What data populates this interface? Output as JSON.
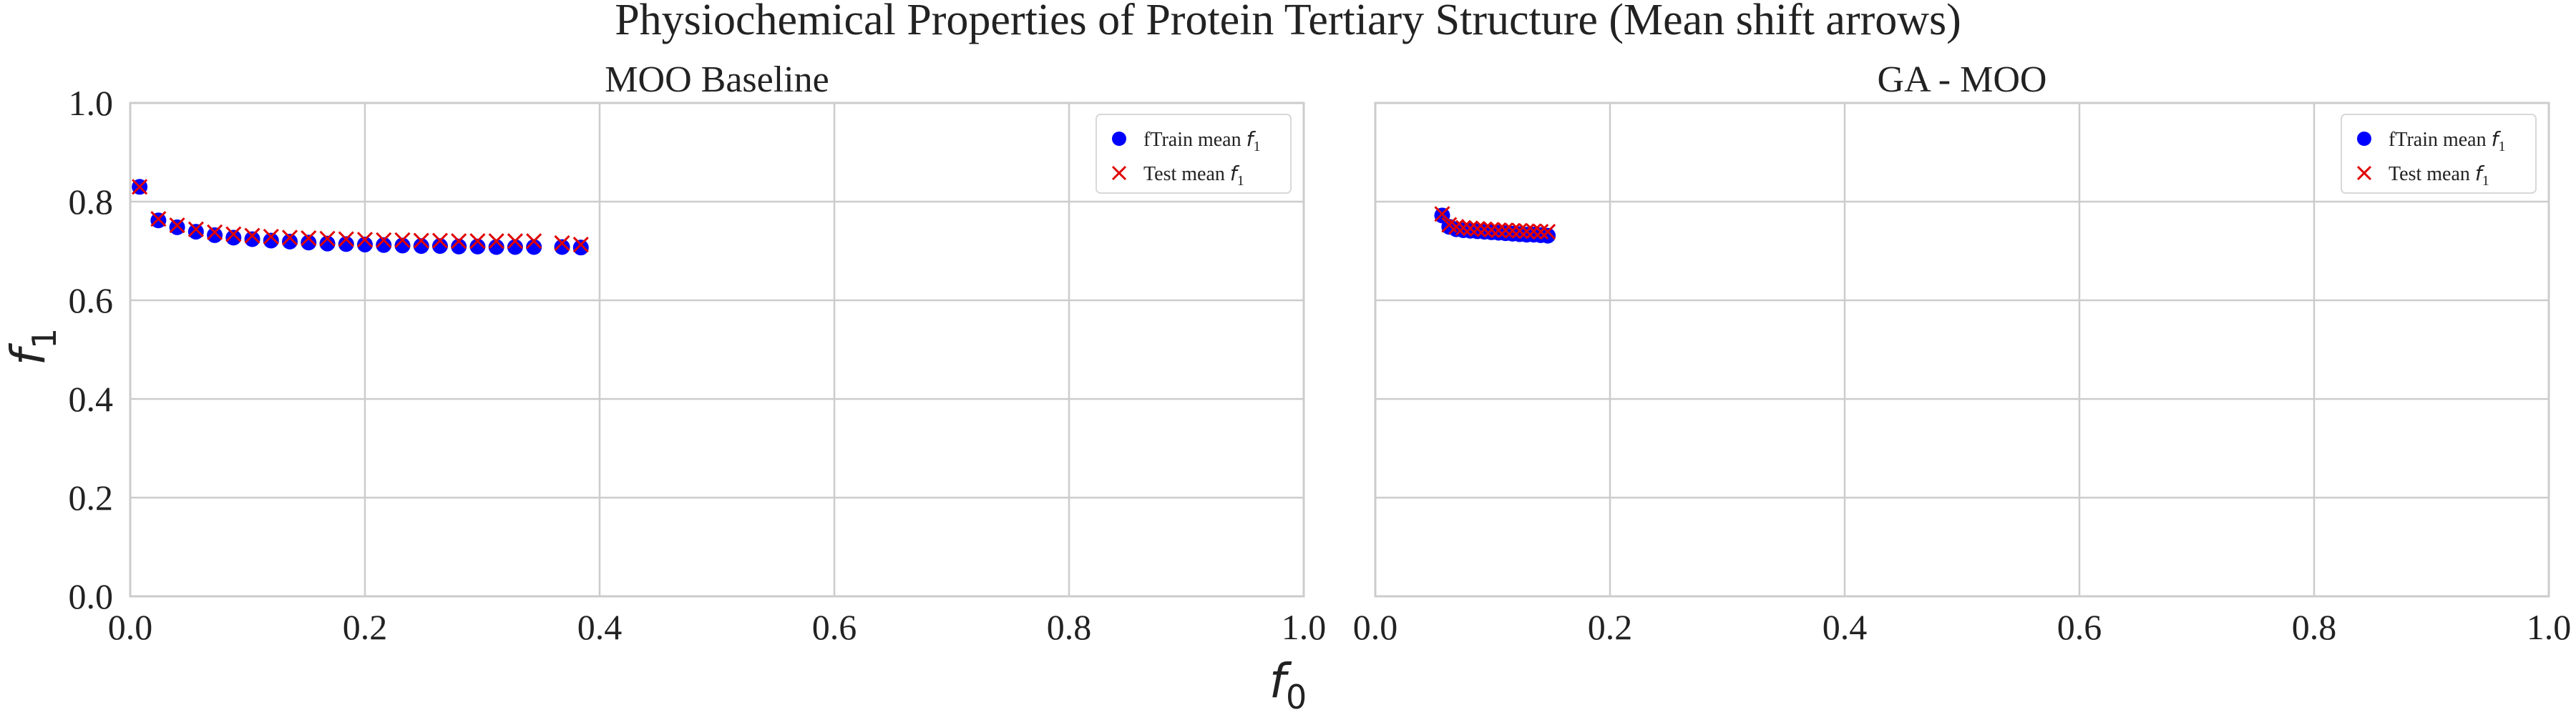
{
  "figure": {
    "suptitle": "Physiochemical Properties of Protein Tertiary Structure (Mean shift arrows)",
    "xlabel": "f",
    "xlabel_sub": "0",
    "ylabel": "f",
    "ylabel_sub": "1"
  },
  "colors": {
    "train": "#0000ff",
    "test": "#e00000",
    "grid": "#cccccc",
    "axes": "#cccccc",
    "text": "#222222"
  },
  "chart_data": [
    {
      "type": "scatter",
      "title": "MOO Baseline",
      "xlim": [
        0,
        1
      ],
      "ylim": [
        0,
        1
      ],
      "xticks": [
        "0.0",
        "0.2",
        "0.4",
        "0.6",
        "0.8",
        "1.0"
      ],
      "yticks": [
        "0.0",
        "0.2",
        "0.4",
        "0.6",
        "0.8",
        "1.0"
      ],
      "grid": true,
      "legend_position": "top-right",
      "legend": [
        {
          "label": "fTrain mean ",
          "sym": "f",
          "sub": "1",
          "marker": "circle"
        },
        {
          "label": "Test mean ",
          "sym": "f",
          "sub": "1",
          "marker": "x"
        }
      ],
      "series": [
        {
          "name": "fTrain mean f1",
          "marker": "circle",
          "x": [
            0.008,
            0.024,
            0.04,
            0.056,
            0.072,
            0.088,
            0.104,
            0.12,
            0.136,
            0.152,
            0.168,
            0.184,
            0.2,
            0.216,
            0.232,
            0.248,
            0.264,
            0.28,
            0.296,
            0.312,
            0.328,
            0.344,
            0.368,
            0.384
          ],
          "y": [
            0.83,
            0.762,
            0.748,
            0.739,
            0.732,
            0.727,
            0.724,
            0.721,
            0.719,
            0.717,
            0.715,
            0.714,
            0.713,
            0.712,
            0.711,
            0.71,
            0.71,
            0.709,
            0.709,
            0.708,
            0.708,
            0.708,
            0.708,
            0.707
          ]
        },
        {
          "name": "Test mean f1",
          "marker": "x",
          "x": [
            0.008,
            0.024,
            0.04,
            0.056,
            0.072,
            0.088,
            0.104,
            0.12,
            0.136,
            0.152,
            0.168,
            0.184,
            0.2,
            0.216,
            0.232,
            0.248,
            0.264,
            0.28,
            0.296,
            0.312,
            0.328,
            0.344,
            0.368,
            0.384
          ],
          "y": [
            0.83,
            0.765,
            0.752,
            0.744,
            0.738,
            0.734,
            0.731,
            0.729,
            0.727,
            0.726,
            0.725,
            0.724,
            0.723,
            0.722,
            0.722,
            0.721,
            0.721,
            0.72,
            0.72,
            0.72,
            0.72,
            0.72,
            0.716,
            0.713
          ]
        }
      ]
    },
    {
      "type": "scatter",
      "title": "GA - MOO",
      "xlim": [
        0,
        1
      ],
      "ylim": [
        0,
        1
      ],
      "xticks": [
        "0.0",
        "0.2",
        "0.4",
        "0.6",
        "0.8",
        "1.0"
      ],
      "yticks": [],
      "grid": true,
      "legend_position": "top-right",
      "legend": [
        {
          "label": "fTrain mean ",
          "sym": "f",
          "sub": "1",
          "marker": "circle"
        },
        {
          "label": "Test mean ",
          "sym": "f",
          "sub": "1",
          "marker": "x"
        }
      ],
      "series": [
        {
          "name": "fTrain mean f1",
          "marker": "circle",
          "x": [
            0.057,
            0.063,
            0.069,
            0.075,
            0.081,
            0.087,
            0.093,
            0.099,
            0.105,
            0.111,
            0.117,
            0.123,
            0.129,
            0.135,
            0.141,
            0.147
          ],
          "y": [
            0.772,
            0.749,
            0.744,
            0.742,
            0.741,
            0.74,
            0.739,
            0.738,
            0.737,
            0.736,
            0.735,
            0.734,
            0.733,
            0.733,
            0.732,
            0.731
          ]
        },
        {
          "name": "Test mean f1",
          "marker": "x",
          "x": [
            0.057,
            0.063,
            0.069,
            0.075,
            0.081,
            0.087,
            0.093,
            0.099,
            0.105,
            0.111,
            0.117,
            0.123,
            0.129,
            0.135,
            0.141,
            0.147
          ],
          "y": [
            0.775,
            0.753,
            0.749,
            0.747,
            0.746,
            0.745,
            0.744,
            0.743,
            0.742,
            0.742,
            0.741,
            0.741,
            0.74,
            0.74,
            0.739,
            0.739
          ]
        }
      ]
    }
  ]
}
